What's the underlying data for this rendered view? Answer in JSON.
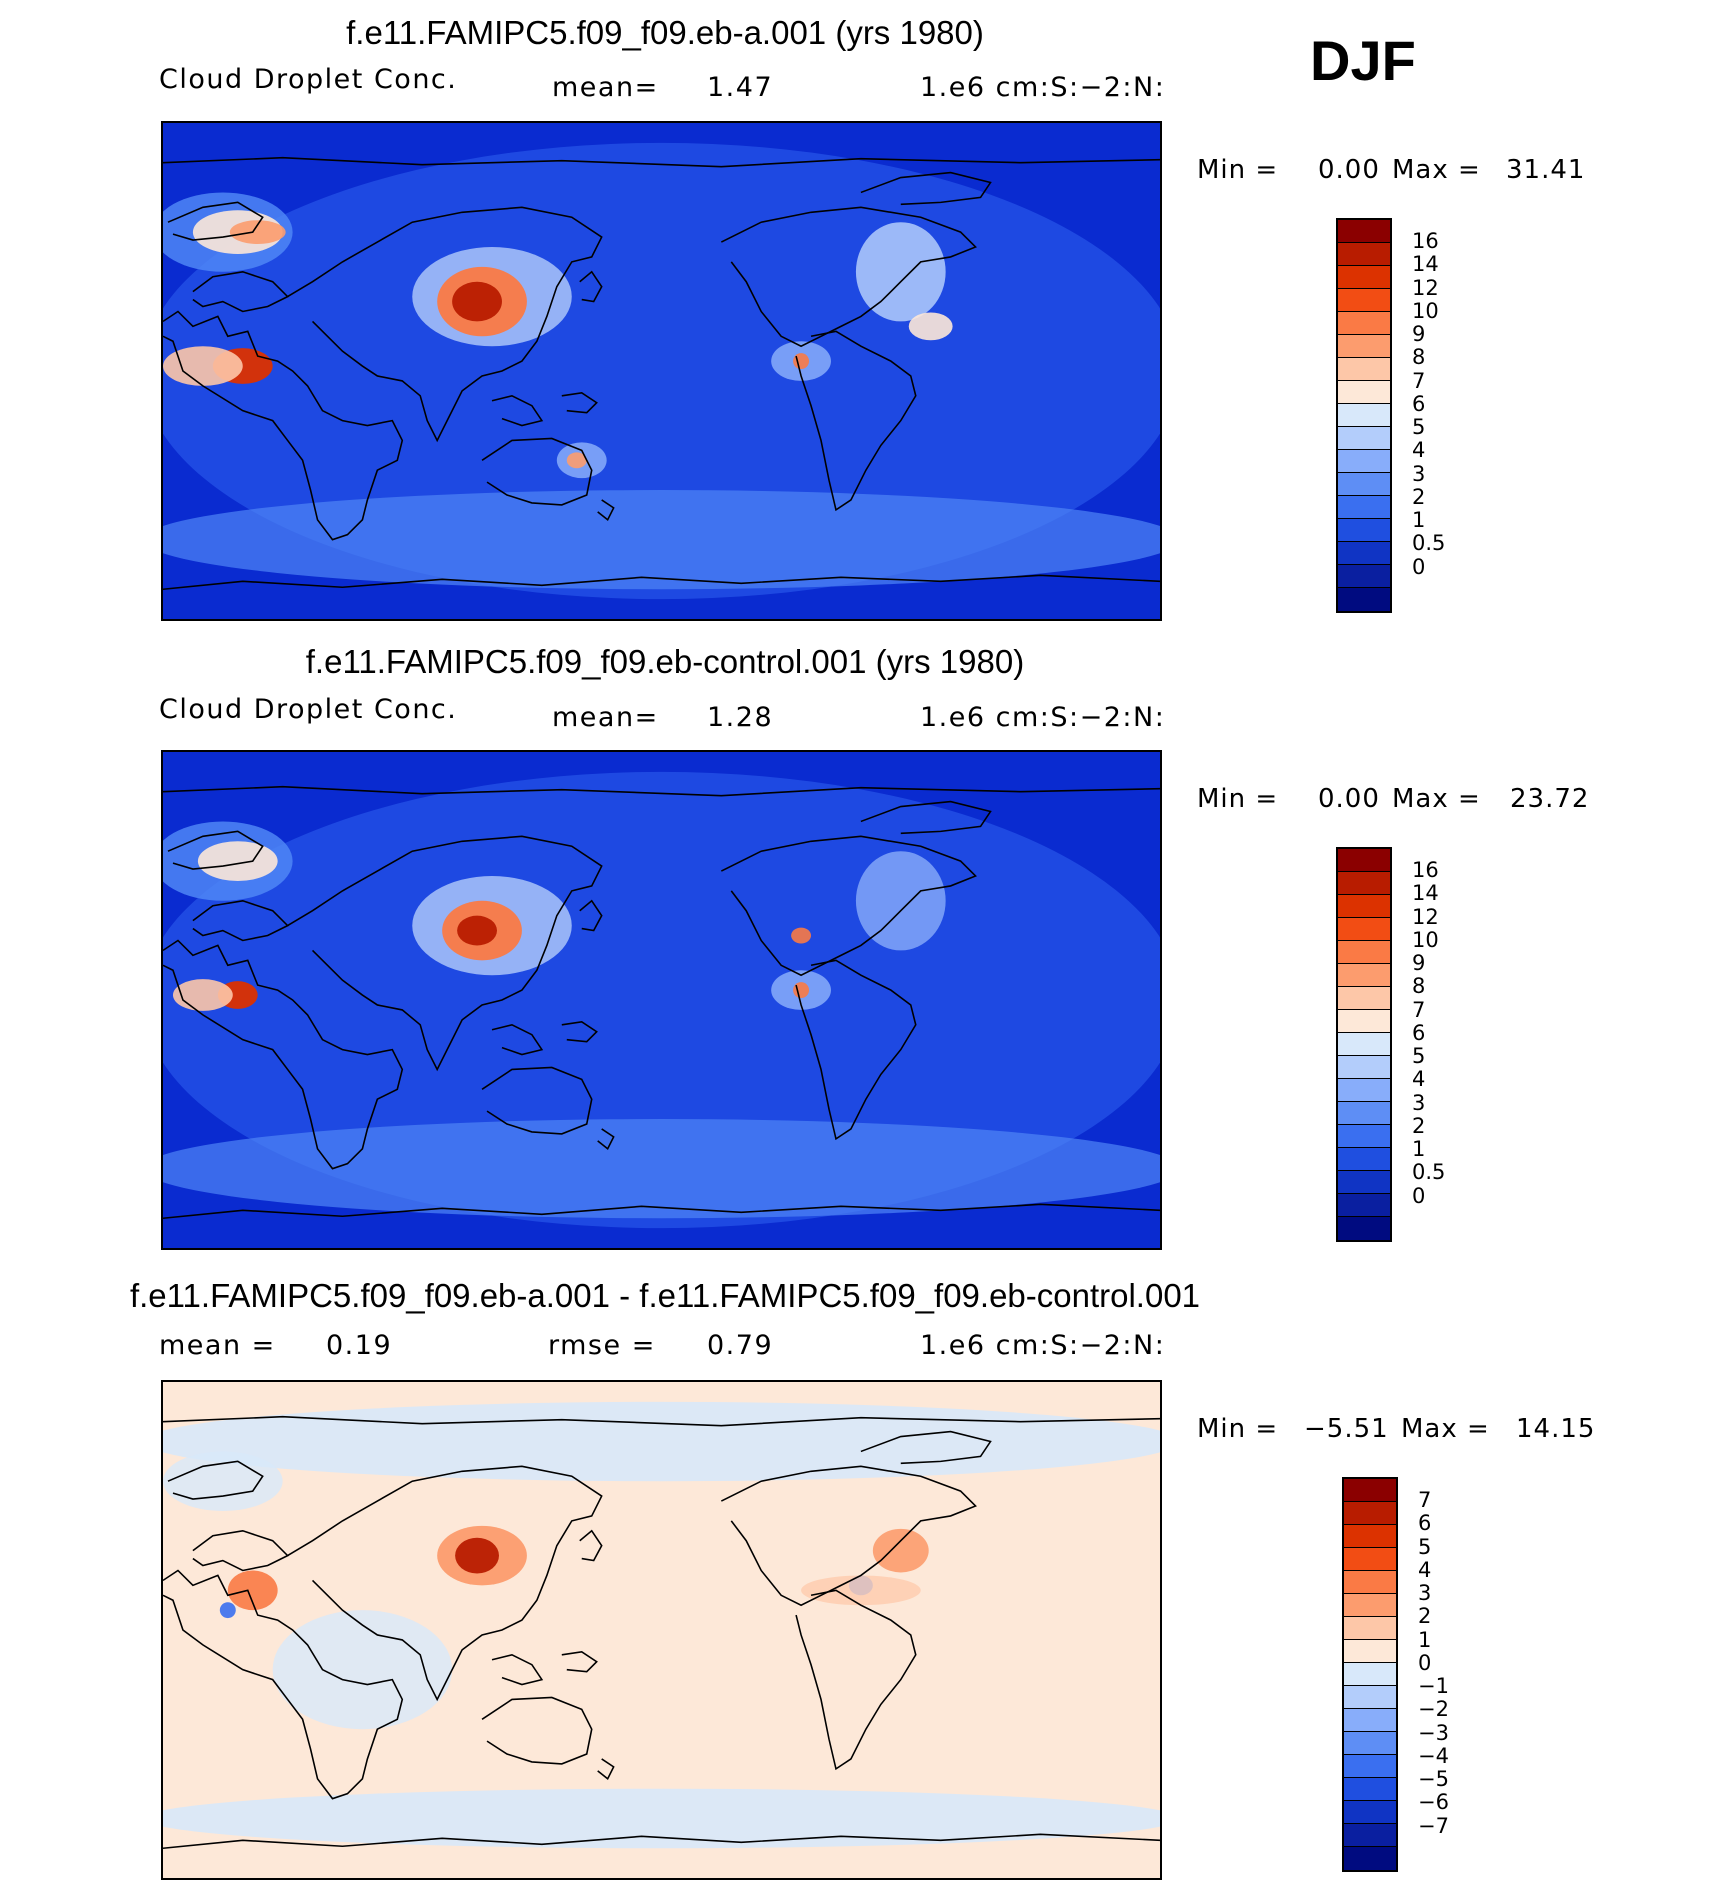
{
  "season": "DJF",
  "panels": [
    {
      "title": "f.e11.FAMIPC5.f09_f09.eb-a.001 (yrs 1980)",
      "variable": "Cloud Droplet Conc.",
      "mean_label": "mean=",
      "mean_value": "1.47",
      "units": "1.e6 cm:S:−2:N:",
      "min_label": "Min =",
      "min_value": "0.00",
      "max_label": "Max =",
      "max_value": "31.41",
      "colorbar": {
        "labels": [
          "16",
          "14",
          "12",
          "10",
          "9",
          "8",
          "7",
          "6",
          "5",
          "4",
          "3",
          "2",
          "1",
          "0.5",
          "0"
        ],
        "colors": [
          "#8b0000",
          "#b81c00",
          "#dc3200",
          "#f24d14",
          "#fa7a45",
          "#fc9c6e",
          "#fdc7a8",
          "#fde8d8",
          "#d8e8fa",
          "#b3cdfb",
          "#88adfa",
          "#5e8ef5",
          "#3a6ff0",
          "#1f4fe0",
          "#1034c4",
          "#0a1fa0",
          "#000b80"
        ]
      },
      "map_style": "concentration_a"
    },
    {
      "title": "f.e11.FAMIPC5.f09_f09.eb-control.001 (yrs 1980)",
      "variable": "Cloud Droplet Conc.",
      "mean_label": "mean=",
      "mean_value": "1.28",
      "units": "1.e6 cm:S:−2:N:",
      "min_label": "Min =",
      "min_value": "0.00",
      "max_label": "Max =",
      "max_value": "23.72",
      "colorbar": {
        "labels": [
          "16",
          "14",
          "12",
          "10",
          "9",
          "8",
          "7",
          "6",
          "5",
          "4",
          "3",
          "2",
          "1",
          "0.5",
          "0"
        ],
        "colors": [
          "#8b0000",
          "#b81c00",
          "#dc3200",
          "#f24d14",
          "#fa7a45",
          "#fc9c6e",
          "#fdc7a8",
          "#fde8d8",
          "#d8e8fa",
          "#b3cdfb",
          "#88adfa",
          "#5e8ef5",
          "#3a6ff0",
          "#1f4fe0",
          "#1034c4",
          "#0a1fa0",
          "#000b80"
        ]
      },
      "map_style": "concentration_b"
    },
    {
      "title": "f.e11.FAMIPC5.f09_f09.eb-a.001 - f.e11.FAMIPC5.f09_f09.eb-control.001",
      "mean_label": "mean =",
      "mean_value": "0.19",
      "rmse_label": "rmse =",
      "rmse_value": "0.79",
      "units": "1.e6 cm:S:−2:N:",
      "min_label": "Min =",
      "min_value": "−5.51",
      "max_label": "Max =",
      "max_value": "14.15",
      "colorbar": {
        "labels": [
          "7",
          "6",
          "5",
          "4",
          "3",
          "2",
          "1",
          "0",
          "−1",
          "−2",
          "−3",
          "−4",
          "−5",
          "−6",
          "−7"
        ],
        "colors": [
          "#8b0000",
          "#b81c00",
          "#dc3200",
          "#f24d14",
          "#fa7a45",
          "#fc9c6e",
          "#fdc7a8",
          "#fde8d8",
          "#d8e8fa",
          "#b3cdfb",
          "#88adfa",
          "#5e8ef5",
          "#3a6ff0",
          "#1f4fe0",
          "#1034c4",
          "#0a1fa0",
          "#000b80"
        ]
      },
      "map_style": "difference"
    }
  ]
}
